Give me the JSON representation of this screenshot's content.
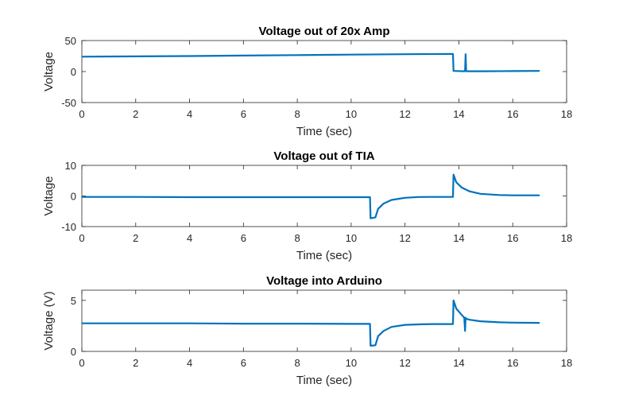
{
  "chart_data": [
    {
      "type": "line",
      "title": "Voltage out of 20x Amp",
      "xlabel": "Time (sec)",
      "ylabel": "Voltage",
      "xlim": [
        0,
        18
      ],
      "ylim": [
        -50,
        50
      ],
      "xticks": [
        0,
        2,
        4,
        6,
        8,
        10,
        12,
        14,
        16,
        18
      ],
      "yticks": [
        -50,
        0,
        50
      ],
      "color": "#0072BD",
      "series": [
        {
          "x": [
            0,
            2,
            4,
            6,
            8,
            10,
            12,
            13.78,
            13.8,
            14.2,
            14.23,
            14.25,
            14.27,
            14.3,
            15,
            16,
            17
          ],
          "y": [
            24,
            24.5,
            25,
            25.8,
            26.5,
            27.3,
            28,
            28.5,
            1,
            0.5,
            0.5,
            28,
            1,
            0.5,
            0.5,
            0.8,
            1
          ]
        }
      ]
    },
    {
      "type": "line",
      "title": "Voltage out of TIA",
      "xlabel": "Time (sec)",
      "ylabel": "Voltage",
      "xlim": [
        0,
        18
      ],
      "ylim": [
        -10,
        10
      ],
      "xticks": [
        0,
        2,
        4,
        6,
        8,
        10,
        12,
        14,
        16,
        18
      ],
      "yticks": [
        -10,
        0,
        10
      ],
      "color": "#0072BD",
      "series": [
        {
          "x": [
            0,
            2,
            4,
            6,
            8,
            10,
            10.7,
            10.72,
            10.9,
            11.0,
            11.2,
            11.5,
            12,
            12.5,
            13,
            13.78,
            13.8,
            13.9,
            14.1,
            14.4,
            14.8,
            15.5,
            16,
            17
          ],
          "y": [
            -0.3,
            -0.3,
            -0.4,
            -0.4,
            -0.4,
            -0.4,
            -0.4,
            -7.3,
            -7.0,
            -4.2,
            -2.5,
            -1.3,
            -0.6,
            -0.35,
            -0.3,
            -0.3,
            7.0,
            4.5,
            2.8,
            1.5,
            0.7,
            0.3,
            0.2,
            0.2
          ]
        }
      ]
    },
    {
      "type": "line",
      "title": "Voltage into Arduino",
      "xlabel": "Time (sec)",
      "ylabel": "Voltage (V)",
      "xlim": [
        0,
        18
      ],
      "ylim": [
        0,
        6
      ],
      "xticks": [
        0,
        2,
        4,
        6,
        8,
        10,
        12,
        14,
        16,
        18
      ],
      "yticks": [
        0,
        5
      ],
      "color": "#0072BD",
      "series": [
        {
          "x": [
            0,
            2,
            4,
            6,
            8,
            10,
            10.7,
            10.72,
            10.9,
            11.0,
            11.2,
            11.5,
            12,
            12.5,
            13,
            13.78,
            13.8,
            13.9,
            14.1,
            14.2,
            14.23,
            14.25,
            14.27,
            14.4,
            14.8,
            15.5,
            16,
            17
          ],
          "y": [
            2.75,
            2.75,
            2.75,
            2.72,
            2.72,
            2.7,
            2.7,
            0.55,
            0.6,
            1.5,
            2.0,
            2.4,
            2.6,
            2.65,
            2.68,
            2.68,
            5.0,
            4.2,
            3.6,
            3.3,
            2.0,
            3.3,
            3.2,
            3.1,
            2.95,
            2.85,
            2.82,
            2.8
          ]
        }
      ]
    }
  ]
}
